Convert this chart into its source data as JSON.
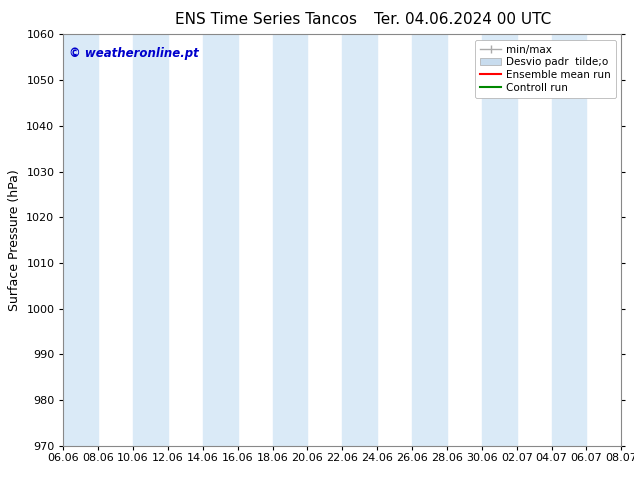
{
  "title_left": "ENS Time Series Tancos",
  "title_right": "Ter. 04.06.2024 00 UTC",
  "ylabel": "Surface Pressure (hPa)",
  "ylim": [
    970,
    1060
  ],
  "yticks": [
    970,
    980,
    990,
    1000,
    1010,
    1020,
    1030,
    1040,
    1050,
    1060
  ],
  "xtick_labels": [
    "06.06",
    "08.06",
    "10.06",
    "12.06",
    "14.06",
    "16.06",
    "18.06",
    "20.06",
    "22.06",
    "24.06",
    "26.06",
    "28.06",
    "30.06",
    "02.07",
    "04.07",
    "06.07",
    "08.07"
  ],
  "watermark": "© weatheronline.pt",
  "watermark_color": "#0000cc",
  "bg_color": "#ffffff",
  "plot_bg_color": "#ffffff",
  "band_color": "#daeaf7",
  "legend_entries": [
    "min/max",
    "Desvio padr  tilde;o",
    "Ensemble mean run",
    "Controll run"
  ],
  "legend_line_color": "#aaaaaa",
  "legend_band_color": "#c8dcee",
  "legend_ens_color": "#ff0000",
  "legend_ctrl_color": "#008800",
  "title_fontsize": 11,
  "label_fontsize": 9,
  "tick_fontsize": 8
}
